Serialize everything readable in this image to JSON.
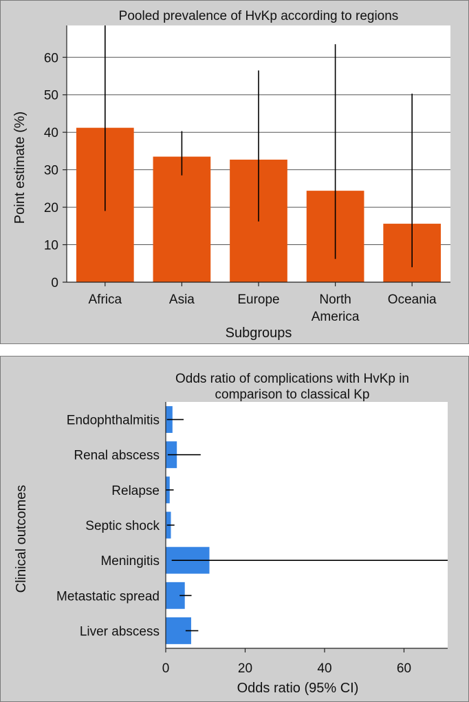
{
  "chart_data": [
    {
      "type": "bar",
      "title": "Pooled prevalence of HvKp according to regions",
      "xlabel": "Subgroups",
      "ylabel": "Point estimate (%)",
      "categories": [
        [
          "Africa"
        ],
        [
          "Asia"
        ],
        [
          "Europe"
        ],
        [
          "North",
          "America"
        ],
        [
          "Oceania"
        ]
      ],
      "values": [
        41.2,
        33.5,
        32.7,
        24.4,
        15.6
      ],
      "ci_lower": [
        19.0,
        28.5,
        16.2,
        6.2,
        4.0
      ],
      "ci_upper": [
        68.5,
        40.3,
        56.5,
        63.5,
        50.3
      ],
      "ylim": [
        0,
        68.5
      ],
      "yticks": [
        0,
        10,
        20,
        30,
        40,
        50,
        60
      ],
      "grid": true,
      "bar_color": "#e5550f"
    },
    {
      "type": "bar",
      "orientation": "horizontal",
      "title": [
        "Odds ratio of complications with HvKp in",
        "comparison to classical Kp"
      ],
      "xlabel": "Odds ratio (95% CI)",
      "ylabel": "Clinical outcomes",
      "categories": [
        "Endophthalmitis",
        "Renal abscess",
        "Relapse",
        "Septic shock",
        "Meningitis",
        "Metastatic spread",
        "Liver abscess"
      ],
      "values": [
        1.7,
        2.8,
        1.0,
        1.3,
        11.0,
        4.8,
        6.4
      ],
      "ci_lower": [
        0.3,
        0.5,
        0.1,
        0.3,
        1.5,
        3.5,
        5.0
      ],
      "ci_upper": [
        4.5,
        8.8,
        2.0,
        2.2,
        71.0,
        6.5,
        8.2
      ],
      "xlim": [
        0,
        71
      ],
      "xticks": [
        0,
        20,
        40,
        60
      ],
      "grid": false,
      "bar_color": "#3584e4"
    }
  ]
}
